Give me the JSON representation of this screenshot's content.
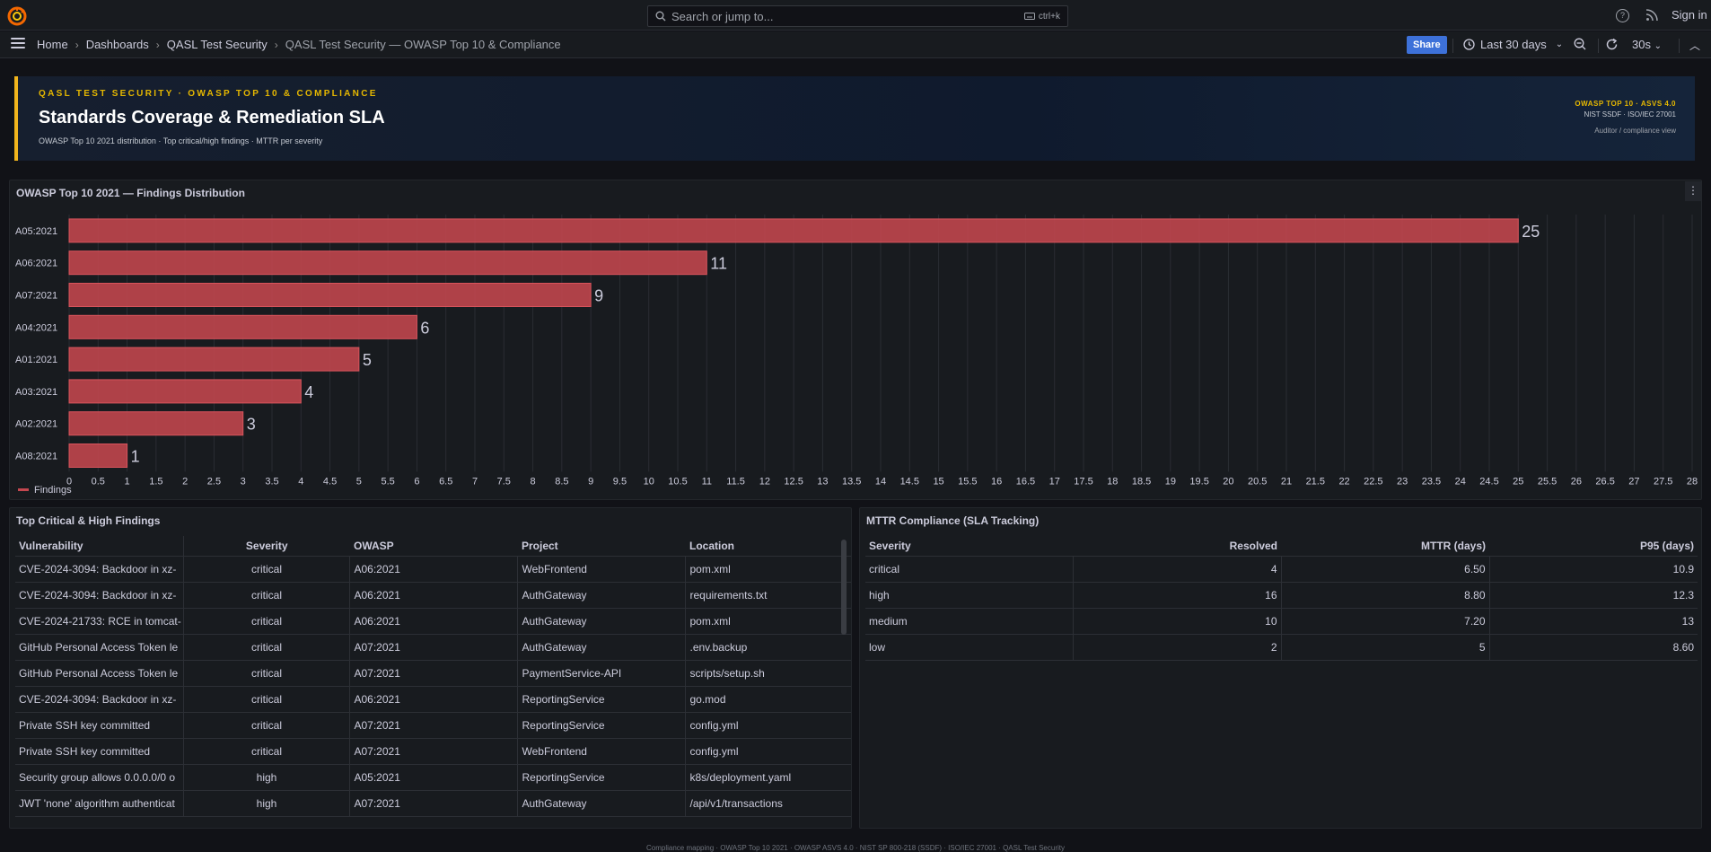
{
  "topbar": {
    "search_placeholder": "Search or jump to...",
    "search_shortcut": "ctrl+k",
    "signin": "Sign in"
  },
  "breadcrumb": {
    "items": [
      "Home",
      "Dashboards",
      "QASL Test Security",
      "QASL Test Security — OWASP Top 10 & Compliance"
    ]
  },
  "toolbar": {
    "share": "Share",
    "time_range": "Last 30 days",
    "refresh_interval": "30s"
  },
  "header": {
    "kicker": "QASL TEST SECURITY · OWASP TOP 10 & COMPLIANCE",
    "title": "Standards Coverage & Remediation SLA",
    "subtitle": "OWASP Top 10 2021 distribution · Top critical/high findings · MTTR per severity",
    "right_line1": "OWASP TOP 10 · ASVS 4.0",
    "right_line2": "NIST SSDF · ISO/IEC 27001",
    "right_line3": "Auditor / compliance view",
    "accent": "#f2b51d"
  },
  "chart_panel": {
    "title": "OWASP Top 10 2021 — Findings Distribution",
    "menu_icon": "kebab-menu-icon"
  },
  "chart_data": {
    "type": "bar",
    "orientation": "horizontal",
    "categories": [
      "A05:2021",
      "A06:2021",
      "A07:2021",
      "A04:2021",
      "A01:2021",
      "A03:2021",
      "A02:2021",
      "A08:2021"
    ],
    "series": [
      {
        "name": "Findings",
        "values": [
          25,
          11,
          9,
          6,
          5,
          4,
          3,
          1
        ],
        "color": "#c4474f"
      }
    ],
    "xlim": [
      0,
      28
    ],
    "xtick_step": 0.5,
    "grid": true,
    "legend": "bottom-left",
    "xlabel": "",
    "ylabel": "",
    "title": ""
  },
  "findings_panel": {
    "title": "Top Critical & High Findings",
    "columns": [
      "Vulnerability",
      "Severity",
      "OWASP",
      "Project",
      "Location"
    ],
    "rows": [
      [
        "CVE-2024-3094: Backdoor in xz-",
        "critical",
        "A06:2021",
        "WebFrontend",
        "pom.xml"
      ],
      [
        "CVE-2024-3094: Backdoor in xz-",
        "critical",
        "A06:2021",
        "AuthGateway",
        "requirements.txt"
      ],
      [
        "CVE-2024-21733: RCE in tomcat-",
        "critical",
        "A06:2021",
        "AuthGateway",
        "pom.xml"
      ],
      [
        "GitHub Personal Access Token le",
        "critical",
        "A07:2021",
        "AuthGateway",
        ".env.backup"
      ],
      [
        "GitHub Personal Access Token le",
        "critical",
        "A07:2021",
        "PaymentService-API",
        "scripts/setup.sh"
      ],
      [
        "CVE-2024-3094: Backdoor in xz-",
        "critical",
        "A06:2021",
        "ReportingService",
        "go.mod"
      ],
      [
        "Private SSH key committed",
        "critical",
        "A07:2021",
        "ReportingService",
        "config.yml"
      ],
      [
        "Private SSH key committed",
        "critical",
        "A07:2021",
        "WebFrontend",
        "config.yml"
      ],
      [
        "Security group allows 0.0.0.0/0 o",
        "high",
        "A05:2021",
        "ReportingService",
        "k8s/deployment.yaml"
      ],
      [
        "JWT 'none' algorithm authenticat",
        "high",
        "A07:2021",
        "AuthGateway",
        "/api/v1/transactions"
      ]
    ]
  },
  "mttr_panel": {
    "title": "MTTR Compliance (SLA Tracking)",
    "columns": [
      "Severity",
      "Resolved",
      "MTTR (days)",
      "P95 (days)"
    ],
    "rows": [
      [
        "critical",
        "4",
        "6.50",
        "10.9"
      ],
      [
        "high",
        "16",
        "8.80",
        "12.3"
      ],
      [
        "medium",
        "10",
        "7.20",
        "13"
      ],
      [
        "low",
        "2",
        "5",
        "8.60"
      ]
    ]
  },
  "footer": {
    "text": "Compliance mapping · OWASP Top 10 2021 · OWASP ASVS 4.0 · NIST SP 800-218 (SSDF) · ISO/IEC 27001 · QASL Test Security"
  }
}
